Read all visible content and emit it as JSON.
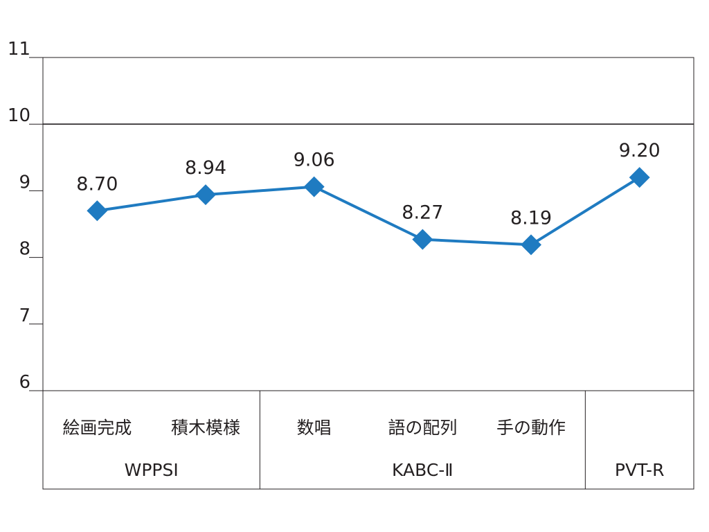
{
  "chart_data": {
    "type": "line",
    "title": "",
    "xlabel": "",
    "ylabel": "",
    "ylim": [
      6,
      11
    ],
    "yticks": [
      6,
      7,
      8,
      9,
      10,
      11
    ],
    "reference_line": 10,
    "categories": [
      "絵画完成",
      "積木模様",
      "数唱",
      "語の配列",
      "手の動作",
      ""
    ],
    "groups": [
      {
        "label": "WPPSI",
        "count": 2
      },
      {
        "label": "KABC-Ⅱ",
        "count": 3
      },
      {
        "label": "PVT-R",
        "count": 1
      }
    ],
    "series": [
      {
        "values": [
          8.7,
          8.94,
          9.06,
          8.27,
          8.19,
          9.2
        ],
        "labels": [
          "8.70",
          "8.94",
          "9.06",
          "8.27",
          "8.19",
          "9.20"
        ],
        "color": "#1f7bc1",
        "marker": "diamond"
      }
    ],
    "grid": false,
    "legend": "none"
  }
}
